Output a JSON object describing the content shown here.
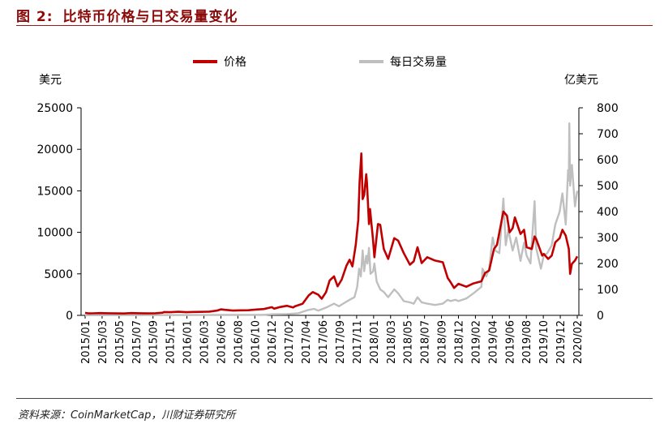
{
  "figure": {
    "number": "图 2:",
    "title": "比特币价格与日交易量变化",
    "source": "资料来源：CoinMarketCap，川财证券研究所"
  },
  "colors": {
    "price": "#c00000",
    "volume": "#bfbfbf",
    "title": "#8b0a0a"
  },
  "chart_data": {
    "type": "line",
    "title": "",
    "legend": {
      "placement": "top",
      "entries": [
        "价格",
        "每日交易量"
      ]
    },
    "ylabel_left": "美元",
    "ylabel_right": "亿美元",
    "ylim_left": [
      0,
      25000
    ],
    "ylim_right": [
      0,
      800
    ],
    "yticks_left": [
      "0",
      "5000",
      "10000",
      "15000",
      "20000",
      "25000"
    ],
    "yticks_right": [
      "0",
      "100",
      "200",
      "300",
      "400",
      "500",
      "600",
      "700",
      "800"
    ],
    "xticks": [
      "2015/01",
      "2015/03",
      "2015/05",
      "2015/07",
      "2015/09",
      "2015/11",
      "2016/01",
      "2016/03",
      "2016/06",
      "2016/08",
      "2016/10",
      "2016/12",
      "2017/02",
      "2017/04",
      "2017/06",
      "2017/09",
      "2017/11",
      "2018/01",
      "2018/03",
      "2018/05",
      "2018/07",
      "2018/09",
      "2018/12",
      "2019/02",
      "2019/04",
      "2019/06",
      "2019/08",
      "2019/10",
      "2019/12",
      "2020/02"
    ],
    "grid": false,
    "series": [
      {
        "name": "价格",
        "axis": "left",
        "points": [
          [
            "2015/01/01",
            300
          ],
          [
            "2015/01/15",
            230
          ],
          [
            "2015/02/01",
            240
          ],
          [
            "2015/03/01",
            270
          ],
          [
            "2015/04/01",
            250
          ],
          [
            "2015/05/01",
            235
          ],
          [
            "2015/06/01",
            225
          ],
          [
            "2015/07/01",
            270
          ],
          [
            "2015/08/01",
            250
          ],
          [
            "2015/09/01",
            230
          ],
          [
            "2015/10/01",
            240
          ],
          [
            "2015/11/01",
            320
          ],
          [
            "2015/11/05",
            400
          ],
          [
            "2015/12/01",
            380
          ],
          [
            "2016/01/01",
            430
          ],
          [
            "2016/02/01",
            380
          ],
          [
            "2016/03/01",
            410
          ],
          [
            "2016/04/01",
            420
          ],
          [
            "2016/05/01",
            450
          ],
          [
            "2016/06/01",
            580
          ],
          [
            "2016/06/15",
            720
          ],
          [
            "2016/07/01",
            660
          ],
          [
            "2016/08/01",
            575
          ],
          [
            "2016/09/01",
            605
          ],
          [
            "2016/10/01",
            615
          ],
          [
            "2016/11/01",
            700
          ],
          [
            "2016/12/01",
            760
          ],
          [
            "2017/01/01",
            990
          ],
          [
            "2017/01/10",
            800
          ],
          [
            "2017/02/01",
            1000
          ],
          [
            "2017/03/01",
            1150
          ],
          [
            "2017/03/25",
            950
          ],
          [
            "2017/04/01",
            1080
          ],
          [
            "2017/05/01",
            1400
          ],
          [
            "2017/05/25",
            2400
          ],
          [
            "2017/06/10",
            2800
          ],
          [
            "2017/07/01",
            2500
          ],
          [
            "2017/07/15",
            2000
          ],
          [
            "2017/08/01",
            2800
          ],
          [
            "2017/08/15",
            4200
          ],
          [
            "2017/09/01",
            4700
          ],
          [
            "2017/09/15",
            3500
          ],
          [
            "2017/10/01",
            4300
          ],
          [
            "2017/10/20",
            6000
          ],
          [
            "2017/11/01",
            6700
          ],
          [
            "2017/11/12",
            5900
          ],
          [
            "2017/11/25",
            8500
          ],
          [
            "2017/12/05",
            11500
          ],
          [
            "2017/12/10",
            16000
          ],
          [
            "2017/12/17",
            19500
          ],
          [
            "2017/12/22",
            14000
          ],
          [
            "2017/12/28",
            14500
          ],
          [
            "2018/01/05",
            17000
          ],
          [
            "2018/01/08",
            16000
          ],
          [
            "2018/01/16",
            11000
          ],
          [
            "2018/01/20",
            12800
          ],
          [
            "2018/02/01",
            9000
          ],
          [
            "2018/02/06",
            7000
          ],
          [
            "2018/02/20",
            11000
          ],
          [
            "2018/03/01",
            10900
          ],
          [
            "2018/03/15",
            8000
          ],
          [
            "2018/04/01",
            6800
          ],
          [
            "2018/04/25",
            9300
          ],
          [
            "2018/05/10",
            9000
          ],
          [
            "2018/06/01",
            7500
          ],
          [
            "2018/06/25",
            6100
          ],
          [
            "2018/07/10",
            6500
          ],
          [
            "2018/07/25",
            8200
          ],
          [
            "2018/08/10",
            6300
          ],
          [
            "2018/09/01",
            7000
          ],
          [
            "2018/10/01",
            6600
          ],
          [
            "2018/11/01",
            6400
          ],
          [
            "2018/11/20",
            4500
          ],
          [
            "2018/12/01",
            4000
          ],
          [
            "2018/12/15",
            3300
          ],
          [
            "2019/01/01",
            3800
          ],
          [
            "2019/02/01",
            3450
          ],
          [
            "2019/03/01",
            3850
          ],
          [
            "2019/04/01",
            4100
          ],
          [
            "2019/04/15",
            5100
          ],
          [
            "2019/05/01",
            5400
          ],
          [
            "2019/05/20",
            8000
          ],
          [
            "2019/06/01",
            8500
          ],
          [
            "2019/06/26",
            12500
          ],
          [
            "2019/07/10",
            12000
          ],
          [
            "2019/07/20",
            10000
          ],
          [
            "2019/08/01",
            10500
          ],
          [
            "2019/08/10",
            11800
          ],
          [
            "2019/09/01",
            9800
          ],
          [
            "2019/09/15",
            10300
          ],
          [
            "2019/09/25",
            8200
          ],
          [
            "2019/10/15",
            8000
          ],
          [
            "2019/10/26",
            9500
          ],
          [
            "2019/11/01",
            9200
          ],
          [
            "2019/11/25",
            7200
          ],
          [
            "2019/12/01",
            7400
          ],
          [
            "2019/12/18",
            6800
          ],
          [
            "2020/01/01",
            7200
          ],
          [
            "2020/01/15",
            8800
          ],
          [
            "2020/02/01",
            9300
          ],
          [
            "2020/02/12",
            10300
          ],
          [
            "2020/02/25",
            9600
          ],
          [
            "2020/03/08",
            8000
          ],
          [
            "2020/03/13",
            5000
          ],
          [
            "2020/03/20",
            6200
          ],
          [
            "2020/04/01",
            6600
          ],
          [
            "2020/04/10",
            7100
          ]
        ]
      },
      {
        "name": "每日交易量",
        "axis": "right",
        "points": [
          [
            "2015/01/01",
            0.5
          ],
          [
            "2016/06/01",
            1.5
          ],
          [
            "2016/12/01",
            2
          ],
          [
            "2017/01/01",
            4
          ],
          [
            "2017/03/01",
            5
          ],
          [
            "2017/04/15",
            8
          ],
          [
            "2017/05/20",
            20
          ],
          [
            "2017/06/15",
            25
          ],
          [
            "2017/07/01",
            18
          ],
          [
            "2017/08/01",
            30
          ],
          [
            "2017/09/01",
            45
          ],
          [
            "2017/09/20",
            35
          ],
          [
            "2017/10/15",
            50
          ],
          [
            "2017/11/01",
            60
          ],
          [
            "2017/11/20",
            70
          ],
          [
            "2017/12/01",
            110
          ],
          [
            "2017/12/08",
            180
          ],
          [
            "2017/12/15",
            150
          ],
          [
            "2017/12/22",
            250
          ],
          [
            "2017/12/28",
            170
          ],
          [
            "2018/01/05",
            230
          ],
          [
            "2018/01/10",
            200
          ],
          [
            "2018/01/16",
            260
          ],
          [
            "2018/01/22",
            160
          ],
          [
            "2018/02/01",
            170
          ],
          [
            "2018/02/06",
            200
          ],
          [
            "2018/02/15",
            130
          ],
          [
            "2018/03/01",
            100
          ],
          [
            "2018/03/15",
            90
          ],
          [
            "2018/04/01",
            70
          ],
          [
            "2018/04/25",
            100
          ],
          [
            "2018/05/10",
            85
          ],
          [
            "2018/06/01",
            55
          ],
          [
            "2018/06/25",
            50
          ],
          [
            "2018/07/10",
            45
          ],
          [
            "2018/07/25",
            70
          ],
          [
            "2018/08/10",
            50
          ],
          [
            "2018/09/01",
            45
          ],
          [
            "2018/10/01",
            40
          ],
          [
            "2018/11/01",
            45
          ],
          [
            "2018/11/20",
            60
          ],
          [
            "2018/12/01",
            55
          ],
          [
            "2018/12/20",
            60
          ],
          [
            "2019/01/01",
            55
          ],
          [
            "2019/02/01",
            65
          ],
          [
            "2019/03/01",
            85
          ],
          [
            "2019/04/01",
            110
          ],
          [
            "2019/04/05",
            180
          ],
          [
            "2019/04/20",
            150
          ],
          [
            "2019/05/01",
            180
          ],
          [
            "2019/05/15",
            300
          ],
          [
            "2019/05/25",
            250
          ],
          [
            "2019/06/10",
            240
          ],
          [
            "2019/06/20",
            370
          ],
          [
            "2019/06/26",
            450
          ],
          [
            "2019/07/05",
            270
          ],
          [
            "2019/07/15",
            330
          ],
          [
            "2019/08/01",
            250
          ],
          [
            "2019/08/15",
            300
          ],
          [
            "2019/09/01",
            210
          ],
          [
            "2019/09/15",
            280
          ],
          [
            "2019/09/25",
            230
          ],
          [
            "2019/10/10",
            200
          ],
          [
            "2019/10/26",
            440
          ],
          [
            "2019/11/01",
            260
          ],
          [
            "2019/11/20",
            180
          ],
          [
            "2019/12/01",
            230
          ],
          [
            "2019/12/15",
            240
          ],
          [
            "2020/01/01",
            270
          ],
          [
            "2020/01/15",
            350
          ],
          [
            "2020/02/01",
            400
          ],
          [
            "2020/02/12",
            470
          ],
          [
            "2020/02/25",
            350
          ],
          [
            "2020/03/05",
            560
          ],
          [
            "2020/03/08",
            520
          ],
          [
            "2020/03/10",
            740
          ],
          [
            "2020/03/13",
            500
          ],
          [
            "2020/03/20",
            580
          ],
          [
            "2020/04/01",
            420
          ],
          [
            "2020/04/10",
            480
          ]
        ]
      }
    ]
  }
}
